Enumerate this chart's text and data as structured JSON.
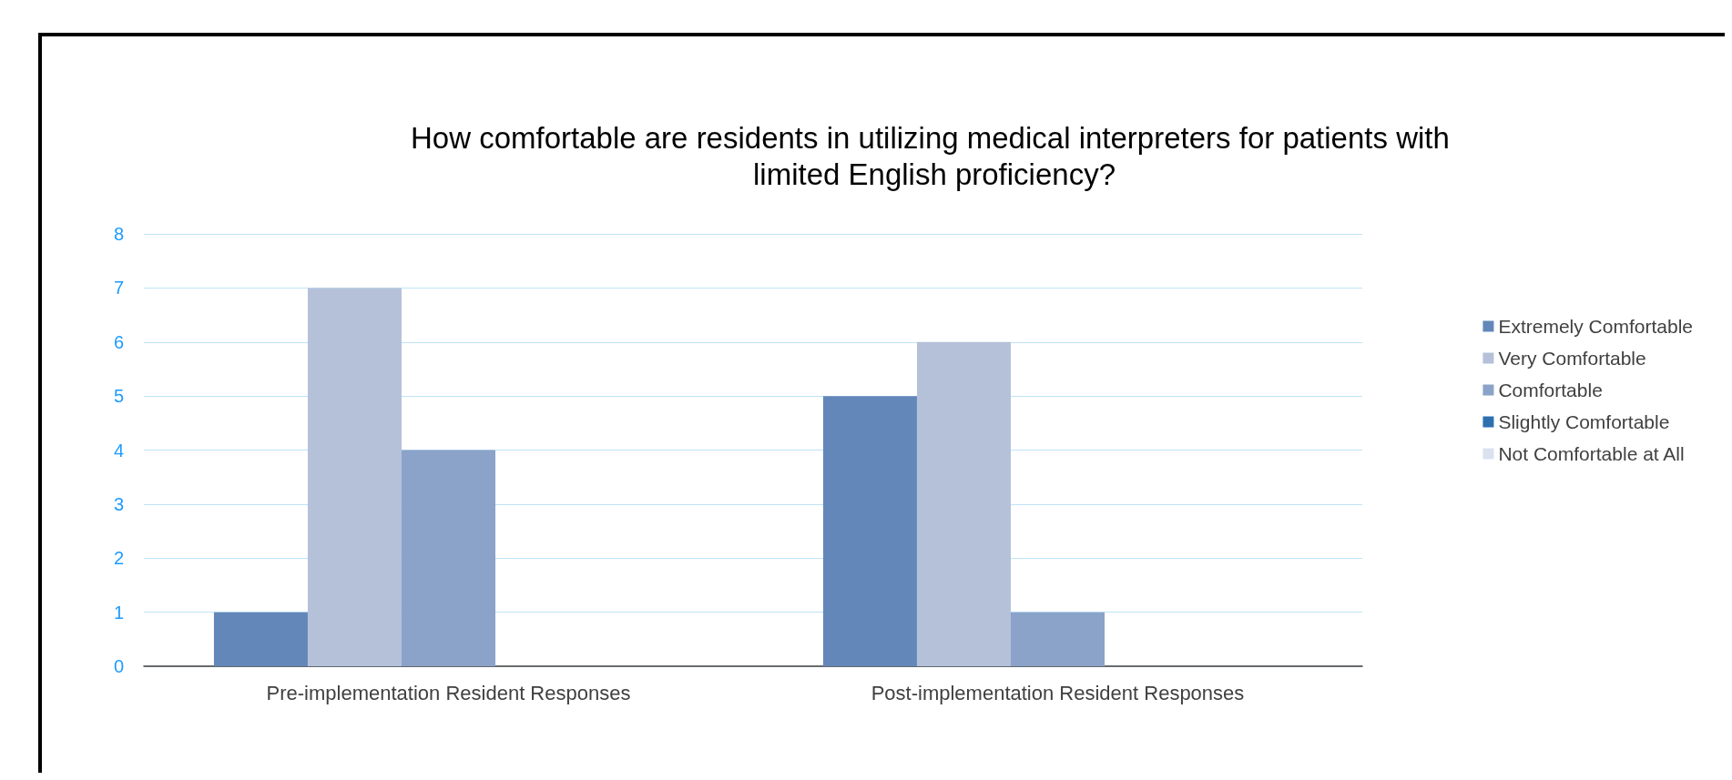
{
  "chart_data": {
    "type": "bar",
    "title": "How comfortable are residents in utilizing medical interpreters for patients with limited English proficiency?",
    "categories": [
      "Pre-implementation Resident Responses",
      "Post-implementation Resident Responses"
    ],
    "series": [
      {
        "name": "Extremely Comfortable",
        "color": "#6387b9",
        "values": [
          1,
          5
        ]
      },
      {
        "name": "Very Comfortable",
        "color": "#b4c1d9",
        "values": [
          7,
          6
        ]
      },
      {
        "name": "Comfortable",
        "color": "#8ba3c8",
        "values": [
          4,
          1
        ]
      },
      {
        "name": "Slightly Comfortable",
        "color": "#2e6fb0",
        "values": [
          0,
          0
        ]
      },
      {
        "name": "Not Comfortable at All",
        "color": "#dae2f0",
        "values": [
          0,
          0
        ]
      }
    ],
    "ylim": [
      0,
      8
    ],
    "yticks": [
      0,
      1,
      2,
      3,
      4,
      5,
      6,
      7,
      8
    ],
    "grid": "y",
    "legend": "right"
  }
}
